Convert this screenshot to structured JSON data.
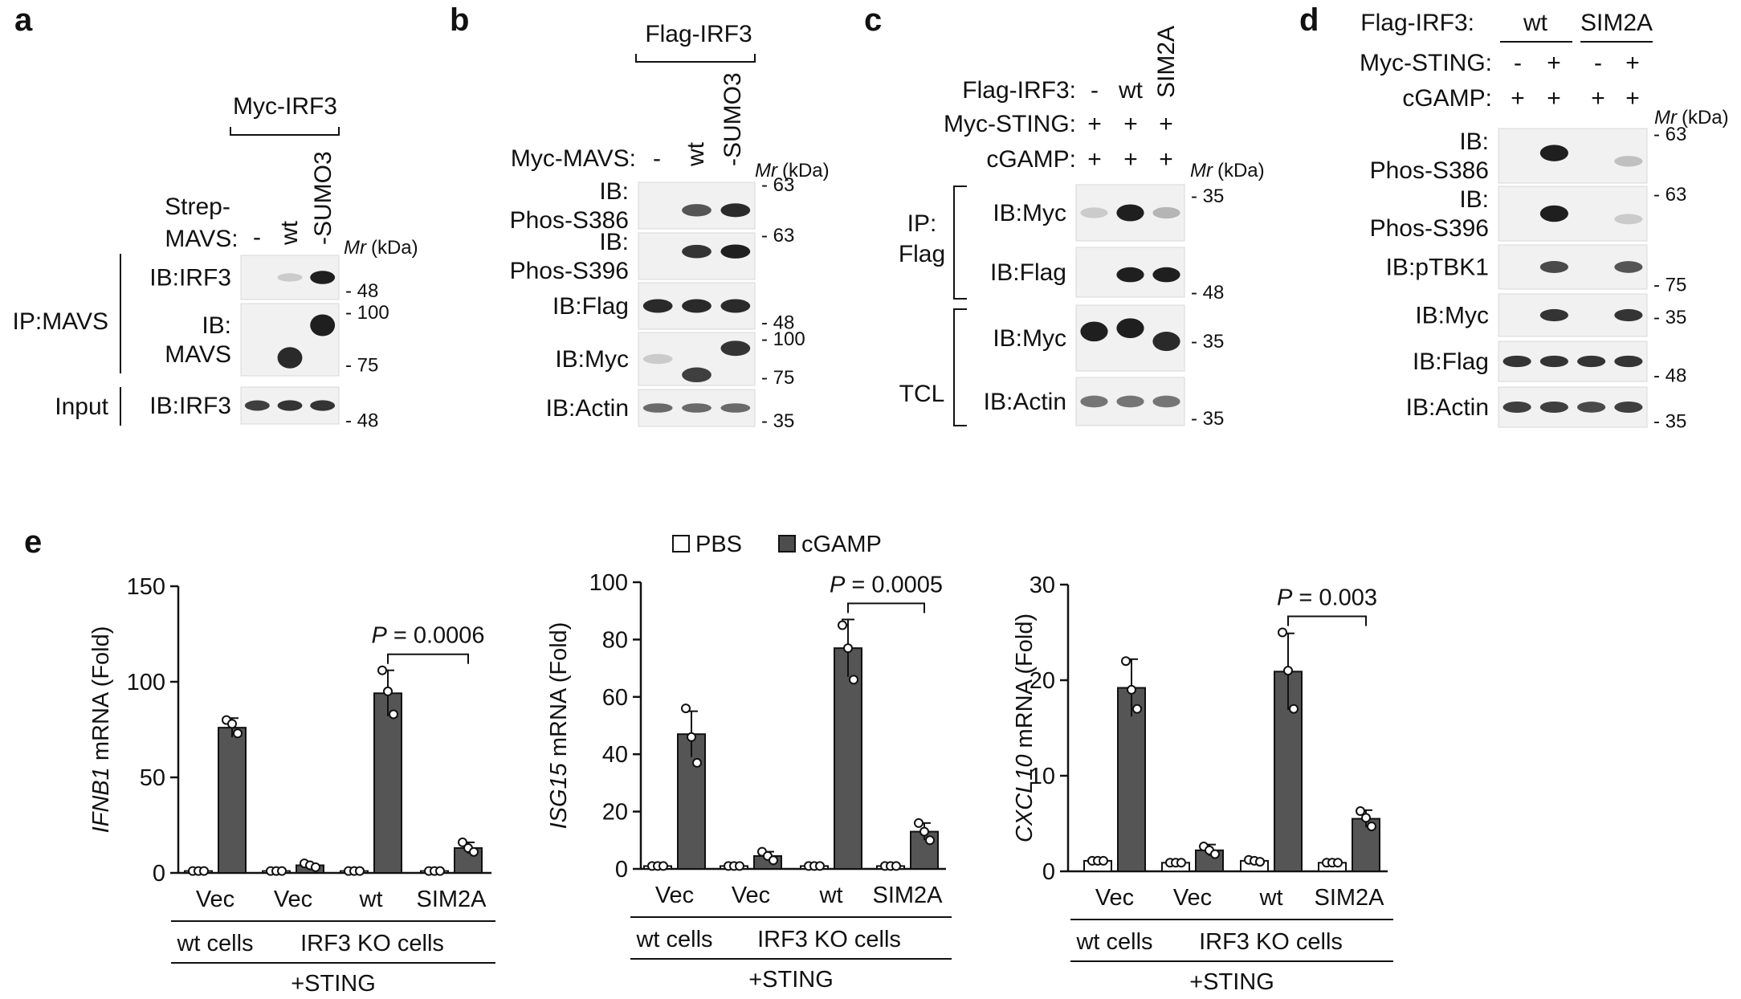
{
  "panels": {
    "a": {
      "letter": "a",
      "group_label": "Myc-IRF3",
      "strep_mavs_label_1": "Strep-",
      "strep_mavs_label_2": "MAVS:",
      "lanes": [
        "-",
        "wt",
        "-SUMO3"
      ],
      "mr_label": "Mr",
      "mr_unit": "(kDa)",
      "ip_label": "IP:MAVS",
      "input_label": "Input",
      "rows": [
        {
          "label_lines": [
            "IB:IRF3"
          ],
          "markers": [
            "48"
          ],
          "bands": [
            0,
            0.15,
            0.95
          ]
        },
        {
          "label_lines": [
            "IB:",
            "MAVS"
          ],
          "markers": [
            "100",
            "75"
          ],
          "bands": [
            0,
            0.9,
            0.95
          ]
        },
        {
          "label_lines": [
            "IB:IRF3"
          ],
          "markers": [
            "48"
          ],
          "bands": [
            0.8,
            0.85,
            0.85
          ]
        }
      ]
    },
    "b": {
      "letter": "b",
      "group_label": "Flag-IRF3",
      "condition_label": "Myc-MAVS:",
      "lanes": [
        "-",
        "wt",
        "-SUMO3"
      ],
      "mr_label": "Mr",
      "mr_unit": "(kDa)",
      "rows": [
        {
          "label_lines": [
            "IB:",
            "Phos-S386"
          ],
          "markers": [
            "63"
          ],
          "bands": [
            0,
            0.7,
            0.9
          ]
        },
        {
          "label_lines": [
            "IB:",
            "Phos-S396"
          ],
          "markers": [
            "63"
          ],
          "bands": [
            0,
            0.85,
            0.95
          ]
        },
        {
          "label_lines": [
            "IB:Flag"
          ],
          "markers": [
            "48"
          ],
          "bands": [
            0.9,
            0.9,
            0.9
          ]
        },
        {
          "label_lines": [
            "IB:Myc"
          ],
          "markers": [
            "100",
            "75"
          ],
          "bands": [
            0.15,
            0.8,
            0.85
          ]
        },
        {
          "label_lines": [
            "IB:Actin"
          ],
          "markers": [
            "35"
          ],
          "bands": [
            0.6,
            0.6,
            0.6
          ]
        }
      ]
    },
    "c": {
      "letter": "c",
      "conditions": [
        {
          "label": "Flag-IRF3:",
          "values": [
            "-",
            "wt",
            "SIM2A"
          ]
        },
        {
          "label": "Myc-STING:",
          "values": [
            "+",
            "+",
            "+"
          ]
        },
        {
          "label": "cGAMP:",
          "values": [
            "+",
            "+",
            "+"
          ]
        }
      ],
      "mr_label": "Mr",
      "mr_unit": "(kDa)",
      "ip_label_1": "IP:",
      "ip_label_2": "Flag",
      "tcl_label": "TCL",
      "rows": [
        {
          "label_lines": [
            "IB:Myc"
          ],
          "markers": [
            "35"
          ],
          "bands": [
            0.15,
            0.95,
            0.25
          ]
        },
        {
          "label_lines": [
            "IB:Flag"
          ],
          "markers": [
            "48"
          ],
          "bands": [
            0,
            0.95,
            0.95
          ]
        },
        {
          "label_lines": [
            "IB:Myc"
          ],
          "markers": [
            "35"
          ],
          "bands": [
            0.95,
            0.95,
            0.9
          ]
        },
        {
          "label_lines": [
            "IB:Actin"
          ],
          "markers": [
            "35"
          ],
          "bands": [
            0.55,
            0.55,
            0.55
          ]
        }
      ]
    },
    "d": {
      "letter": "d",
      "group_label": "Flag-IRF3:",
      "groups": [
        "wt",
        "SIM2A"
      ],
      "conditions": [
        {
          "label": "Myc-STING:",
          "values": [
            "-",
            "+",
            "-",
            "+"
          ]
        },
        {
          "label": "cGAMP:",
          "values": [
            "+",
            "+",
            "+",
            "+"
          ]
        }
      ],
      "mr_label": "Mr",
      "mr_unit": "(kDa)",
      "rows": [
        {
          "label_lines": [
            "IB:",
            "Phos-S386"
          ],
          "markers": [
            "63"
          ],
          "bands": [
            0,
            0.95,
            0,
            0.2
          ]
        },
        {
          "label_lines": [
            "IB:",
            "Phos-S396"
          ],
          "markers": [
            "63"
          ],
          "bands": [
            0,
            0.95,
            0,
            0.15
          ]
        },
        {
          "label_lines": [
            "IB:pTBK1"
          ],
          "markers": [
            "75"
          ],
          "bands": [
            0,
            0.75,
            0,
            0.7
          ]
        },
        {
          "label_lines": [
            "IB:Myc"
          ],
          "markers": [
            "35"
          ],
          "bands": [
            0,
            0.85,
            0,
            0.85
          ]
        },
        {
          "label_lines": [
            "IB:Flag"
          ],
          "markers": [
            "48"
          ],
          "bands": [
            0.85,
            0.85,
            0.85,
            0.85
          ]
        },
        {
          "label_lines": [
            "IB:Actin"
          ],
          "markers": [
            "35"
          ],
          "bands": [
            0.8,
            0.8,
            0.75,
            0.8
          ]
        }
      ]
    },
    "e": {
      "letter": "e",
      "legend": [
        {
          "label": "PBS",
          "color": "#ffffff"
        },
        {
          "label": "cGAMP",
          "color": "#4d4d4d"
        }
      ]
    }
  },
  "chart_data": [
    {
      "type": "bar",
      "title": "",
      "ylabel_gene": "IFNB1",
      "ylabel_suffix": " mRNA (Fold)",
      "ylim": [
        0,
        150
      ],
      "yticks": [
        0,
        50,
        100,
        150
      ],
      "categories": [
        "Vec",
        "Vec",
        "wt",
        "SIM2A"
      ],
      "group_labels": [
        {
          "label": "wt cells",
          "span": [
            0,
            0
          ]
        },
        {
          "label": "IRF3 KO cells",
          "span": [
            1,
            3
          ]
        }
      ],
      "footer": "+STING",
      "series": [
        {
          "name": "PBS",
          "values": [
            1,
            1,
            1,
            1
          ],
          "sd": [
            0.2,
            0.2,
            0.2,
            0.2
          ],
          "points": [
            [
              1,
              1,
              1
            ],
            [
              1,
              1,
              1
            ],
            [
              1,
              1,
              1
            ],
            [
              1,
              1,
              1
            ]
          ]
        },
        {
          "name": "cGAMP",
          "values": [
            76,
            4,
            94,
            13
          ],
          "sd": [
            5,
            1.5,
            12,
            3
          ],
          "points": [
            [
              80,
              78,
              73
            ],
            [
              5,
              4,
              3
            ],
            [
              106,
              95,
              83
            ],
            [
              16,
              13,
              11
            ]
          ]
        }
      ],
      "annotation": {
        "between": [
          2,
          3
        ],
        "p_label": "P",
        "p_value": " = 0.0006"
      }
    },
    {
      "type": "bar",
      "title": "",
      "ylabel_gene": "ISG15",
      "ylabel_suffix": " mRNA (Fold)",
      "ylim": [
        0,
        100
      ],
      "yticks": [
        0,
        20,
        40,
        60,
        80,
        100
      ],
      "categories": [
        "Vec",
        "Vec",
        "wt",
        "SIM2A"
      ],
      "group_labels": [
        {
          "label": "wt cells",
          "span": [
            0,
            0
          ]
        },
        {
          "label": "IRF3 KO cells",
          "span": [
            1,
            3
          ]
        }
      ],
      "footer": "+STING",
      "series": [
        {
          "name": "PBS",
          "values": [
            1,
            1,
            1,
            1
          ],
          "sd": [
            0.2,
            0.2,
            0.2,
            0.2
          ],
          "points": [
            [
              1,
              1,
              1
            ],
            [
              1,
              1,
              1
            ],
            [
              1,
              1,
              1
            ],
            [
              1,
              1,
              1
            ]
          ]
        },
        {
          "name": "cGAMP",
          "values": [
            47,
            4.5,
            77,
            13
          ],
          "sd": [
            8,
            1.5,
            10,
            3
          ],
          "points": [
            [
              56,
              46,
              37
            ],
            [
              6,
              4.5,
              3
            ],
            [
              85,
              77,
              66
            ],
            [
              16,
              13,
              10
            ]
          ]
        }
      ],
      "annotation": {
        "between": [
          2,
          3
        ],
        "p_label": "P",
        "p_value": " = 0.0005"
      }
    },
    {
      "type": "bar",
      "title": "",
      "ylabel_gene": "CXCL10",
      "ylabel_suffix": " mRNA (Fold)",
      "ylim": [
        0,
        30
      ],
      "yticks": [
        0,
        10,
        20,
        30
      ],
      "categories": [
        "Vec",
        "Vec",
        "wt",
        "SIM2A"
      ],
      "group_labels": [
        {
          "label": "wt cells",
          "span": [
            0,
            0
          ]
        },
        {
          "label": "IRF3 KO cells",
          "span": [
            1,
            3
          ]
        }
      ],
      "footer": "+STING",
      "series": [
        {
          "name": "PBS",
          "values": [
            1.1,
            0.9,
            1.1,
            0.9
          ],
          "sd": [
            0.2,
            0.2,
            0.2,
            0.2
          ],
          "points": [
            [
              1.1,
              1.1,
              1.1
            ],
            [
              0.9,
              0.9,
              0.9
            ],
            [
              1.2,
              1.1,
              1.0
            ],
            [
              0.9,
              0.9,
              0.9
            ]
          ]
        },
        {
          "name": "cGAMP",
          "values": [
            19.2,
            2.2,
            20.9,
            5.5
          ],
          "sd": [
            3,
            0.6,
            4,
            0.9
          ],
          "points": [
            [
              22,
              19,
              17
            ],
            [
              2.6,
              2.2,
              1.8
            ],
            [
              25,
              21,
              17
            ],
            [
              6.3,
              5.6,
              4.7
            ]
          ]
        }
      ],
      "annotation": {
        "between": [
          2,
          3
        ],
        "p_label": "P",
        "p_value": " = 0.003"
      }
    }
  ]
}
